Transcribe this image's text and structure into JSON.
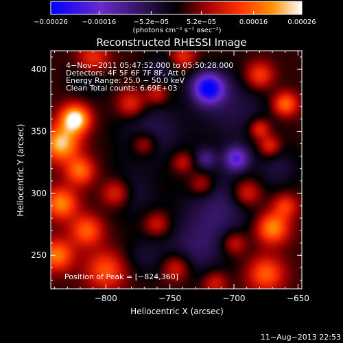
{
  "chart_data": {
    "type": "heatmap",
    "title": "Reconstructed RHESSI Image",
    "xlabel": "Heliocentric X (arcsec)",
    "ylabel": "Heliocentric Y (arcsec)",
    "xlim": [
      -843,
      -647
    ],
    "ylim": [
      223,
      415
    ],
    "x_ticks": [
      -800,
      -750,
      -700,
      -650
    ],
    "x_tick_labels": [
      "−800",
      "−750",
      "−700",
      "−650"
    ],
    "y_ticks": [
      250,
      300,
      350,
      400
    ],
    "y_tick_labels": [
      "250",
      "300",
      "350",
      "400"
    ],
    "colorbar": {
      "min": -0.00026,
      "max": 0.00026,
      "tick_values": [
        -0.00026,
        -0.00016,
        -5.2e-05,
        5.2e-05,
        0.00016,
        0.00026
      ],
      "tick_labels": [
        "−0.00026",
        "−0.00016",
        "−5.2e−05",
        "5.2e−05",
        "0.00016",
        "0.00026"
      ],
      "units_text": "(photons cm⁻² s⁻¹ asec⁻²)",
      "colors": [
        "#0000ff",
        "#6a2acb",
        "#000000",
        "#a00000",
        "#ff3000",
        "#ff9000",
        "#ffffff"
      ]
    },
    "annotations": [
      "4−Nov−2011 05:47:52.000 to 05:50:28.000",
      "Detectors: 4F 5F 6F 7F 8F, Att 0",
      "Energy Range: 25.0 − 50.0 keV",
      "Clean    Total counts: 6.69E+03"
    ],
    "peak_label": "Position of Peak = [−824,360]",
    "blobs": [
      {
        "x": -720,
        "y": 385,
        "s": 9,
        "v": -0.00026
      },
      {
        "x": -698,
        "y": 328,
        "s": 7,
        "v": -0.00018
      },
      {
        "x": -722,
        "y": 328,
        "s": 6,
        "v": -0.0001
      },
      {
        "x": -765,
        "y": 350,
        "s": 18,
        "v": -8e-05
      },
      {
        "x": -700,
        "y": 368,
        "s": 22,
        "v": -7e-05
      },
      {
        "x": -710,
        "y": 290,
        "s": 20,
        "v": -9e-05
      },
      {
        "x": -780,
        "y": 300,
        "s": 15,
        "v": -6e-05
      },
      {
        "x": -730,
        "y": 255,
        "s": 18,
        "v": -8e-05
      },
      {
        "x": -665,
        "y": 320,
        "s": 12,
        "v": -6e-05
      },
      {
        "x": -812,
        "y": 395,
        "s": 12,
        "v": -5e-05
      },
      {
        "x": -757,
        "y": 400,
        "s": 10,
        "v": -6e-05
      },
      {
        "x": -770,
        "y": 250,
        "s": 12,
        "v": -5e-05
      },
      {
        "x": -824,
        "y": 360,
        "s": 8,
        "v": 0.00026
      },
      {
        "x": -835,
        "y": 340,
        "s": 10,
        "v": 0.00021
      },
      {
        "x": -820,
        "y": 318,
        "s": 8,
        "v": 0.00015
      },
      {
        "x": -835,
        "y": 292,
        "s": 9,
        "v": 0.00017
      },
      {
        "x": -815,
        "y": 270,
        "s": 9,
        "v": 0.00014
      },
      {
        "x": -838,
        "y": 250,
        "s": 9,
        "v": 0.00016
      },
      {
        "x": -800,
        "y": 238,
        "s": 11,
        "v": 0.00013
      },
      {
        "x": -792,
        "y": 300,
        "s": 8,
        "v": 0.00012
      },
      {
        "x": -810,
        "y": 408,
        "s": 9,
        "v": 0.00012
      },
      {
        "x": -780,
        "y": 372,
        "s": 8,
        "v": 0.00011
      },
      {
        "x": -770,
        "y": 340,
        "s": 7,
        "v": 0.0001
      },
      {
        "x": -760,
        "y": 380,
        "s": 6,
        "v": 9e-05
      },
      {
        "x": -760,
        "y": 275,
        "s": 7,
        "v": 9e-05
      },
      {
        "x": -745,
        "y": 240,
        "s": 8,
        "v": 0.00011
      },
      {
        "x": -740,
        "y": 410,
        "s": 7,
        "v": 0.0001
      },
      {
        "x": -740,
        "y": 325,
        "s": 6,
        "v": 8e-05
      },
      {
        "x": -725,
        "y": 307,
        "s": 7,
        "v": 9e-05
      },
      {
        "x": -680,
        "y": 395,
        "s": 8,
        "v": 0.00013
      },
      {
        "x": -660,
        "y": 372,
        "s": 7,
        "v": 0.00016
      },
      {
        "x": -680,
        "y": 352,
        "s": 6,
        "v": 0.00012
      },
      {
        "x": -672,
        "y": 338,
        "s": 6,
        "v": 0.00011
      },
      {
        "x": -690,
        "y": 300,
        "s": 8,
        "v": 0.00012
      },
      {
        "x": -660,
        "y": 290,
        "s": 7,
        "v": 0.00011
      },
      {
        "x": -670,
        "y": 272,
        "s": 9,
        "v": 0.00018
      },
      {
        "x": -700,
        "y": 260,
        "s": 7,
        "v": 0.0001
      },
      {
        "x": -675,
        "y": 235,
        "s": 10,
        "v": 0.00014
      },
      {
        "x": -715,
        "y": 228,
        "s": 7,
        "v": 9e-05
      }
    ]
  },
  "footer": {
    "date": "11−Aug−2013 22:53"
  }
}
